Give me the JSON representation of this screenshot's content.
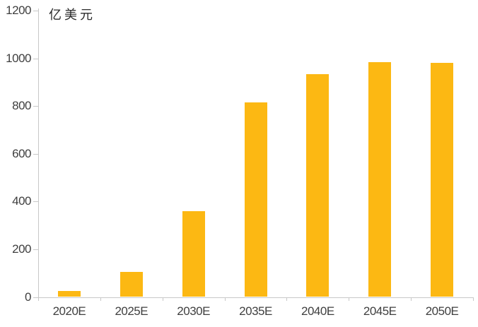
{
  "chart_data": {
    "type": "bar",
    "title": "",
    "subtitle": "",
    "xlabel": "",
    "ylabel": "亿美元",
    "categories": [
      "2020E",
      "2025E",
      "2030E",
      "2035E",
      "2040E",
      "2045E",
      "2050E"
    ],
    "values": [
      25,
      105,
      360,
      815,
      935,
      985,
      980
    ],
    "ylim": [
      0,
      1200
    ],
    "yticks": [
      0,
      200,
      400,
      600,
      800,
      1000,
      1200
    ],
    "grid": false,
    "legend": false,
    "legend_position": "none",
    "bar_color": "#FCB813",
    "axis_color": "#C8C8C8",
    "text_color": "#3F3F3F"
  }
}
